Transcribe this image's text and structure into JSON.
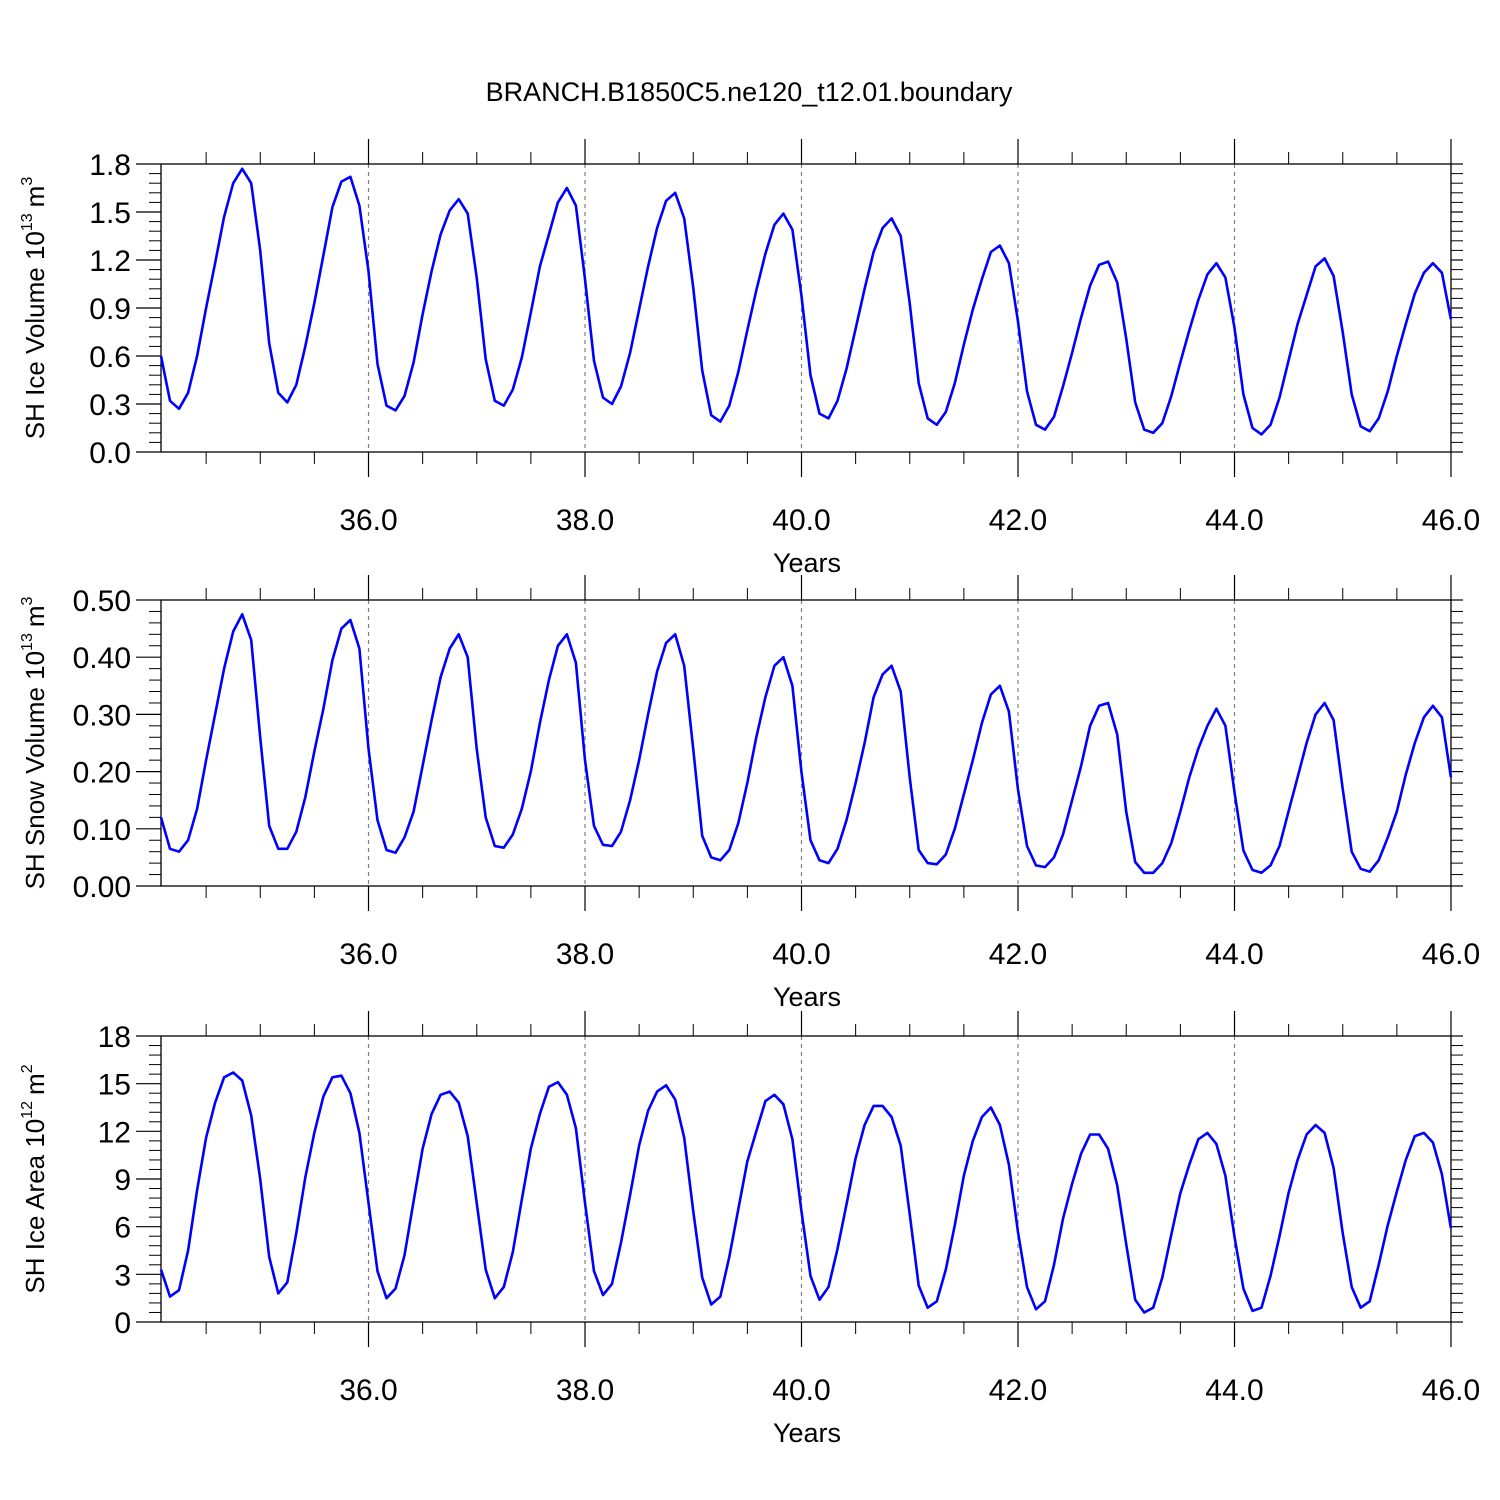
{
  "title": "BRANCH.B1850C5.ne120_t12.01.boundary",
  "chart_data": [
    {
      "type": "line",
      "ylabel": {
        "text": "SH Ice Volume 10",
        "exp": "13",
        "unit": "m",
        "unit_exp": "3"
      },
      "xlabel": "Years",
      "xlim": [
        34.083,
        46.0
      ],
      "ylim": [
        0.0,
        1.8
      ],
      "yticks": [
        0.0,
        0.3,
        0.6,
        0.9,
        1.2,
        1.5,
        1.8
      ],
      "ytick_labels": [
        "0.0",
        "0.3",
        "0.6",
        "0.9",
        "1.2",
        "1.5",
        "1.8"
      ],
      "xticks": [
        36,
        38,
        40,
        42,
        44,
        46
      ],
      "xtick_labels": [
        "36.0",
        "38.0",
        "40.0",
        "42.0",
        "44.0",
        "46.0"
      ],
      "x_start": 34.083,
      "x_step": 0.08333,
      "color": "#0000ff",
      "values": [
        0.6,
        0.32,
        0.27,
        0.37,
        0.6,
        0.9,
        1.18,
        1.47,
        1.68,
        1.77,
        1.68,
        1.26,
        0.68,
        0.37,
        0.31,
        0.42,
        0.66,
        0.93,
        1.23,
        1.53,
        1.69,
        1.72,
        1.54,
        1.13,
        0.55,
        0.29,
        0.26,
        0.35,
        0.56,
        0.86,
        1.13,
        1.36,
        1.51,
        1.58,
        1.49,
        1.09,
        0.58,
        0.32,
        0.29,
        0.39,
        0.59,
        0.87,
        1.16,
        1.36,
        1.56,
        1.65,
        1.54,
        1.08,
        0.57,
        0.34,
        0.3,
        0.41,
        0.62,
        0.89,
        1.16,
        1.4,
        1.57,
        1.62,
        1.46,
        1.03,
        0.51,
        0.23,
        0.19,
        0.29,
        0.5,
        0.76,
        1.01,
        1.24,
        1.42,
        1.49,
        1.39,
        0.98,
        0.48,
        0.24,
        0.21,
        0.32,
        0.52,
        0.77,
        1.02,
        1.25,
        1.4,
        1.46,
        1.35,
        0.93,
        0.43,
        0.21,
        0.17,
        0.25,
        0.43,
        0.67,
        0.89,
        1.08,
        1.25,
        1.29,
        1.18,
        0.82,
        0.38,
        0.17,
        0.14,
        0.22,
        0.41,
        0.62,
        0.84,
        1.04,
        1.17,
        1.19,
        1.06,
        0.71,
        0.31,
        0.14,
        0.12,
        0.18,
        0.35,
        0.56,
        0.76,
        0.95,
        1.11,
        1.18,
        1.09,
        0.78,
        0.36,
        0.15,
        0.11,
        0.17,
        0.34,
        0.57,
        0.8,
        0.98,
        1.16,
        1.21,
        1.1,
        0.75,
        0.36,
        0.16,
        0.13,
        0.21,
        0.38,
        0.6,
        0.8,
        0.99,
        1.12,
        1.18,
        1.12,
        0.83
      ]
    },
    {
      "type": "line",
      "ylabel": {
        "text": "SH Snow Volume 10",
        "exp": "13",
        "unit": "m",
        "unit_exp": "3"
      },
      "xlabel": "Years",
      "xlim": [
        34.083,
        46.0
      ],
      "ylim": [
        0.0,
        0.5
      ],
      "yticks": [
        0.0,
        0.1,
        0.2,
        0.3,
        0.4,
        0.5
      ],
      "ytick_labels": [
        "0.00",
        "0.10",
        "0.20",
        "0.30",
        "0.40",
        "0.50"
      ],
      "xticks": [
        36,
        38,
        40,
        42,
        44,
        46
      ],
      "xtick_labels": [
        "36.0",
        "38.0",
        "40.0",
        "42.0",
        "44.0",
        "46.0"
      ],
      "x_start": 34.083,
      "x_step": 0.08333,
      "color": "#0000ff",
      "values": [
        0.12,
        0.065,
        0.06,
        0.08,
        0.135,
        0.22,
        0.3,
        0.38,
        0.445,
        0.475,
        0.43,
        0.26,
        0.105,
        0.065,
        0.065,
        0.095,
        0.155,
        0.235,
        0.31,
        0.395,
        0.45,
        0.465,
        0.415,
        0.24,
        0.115,
        0.063,
        0.058,
        0.085,
        0.13,
        0.21,
        0.29,
        0.365,
        0.415,
        0.44,
        0.4,
        0.24,
        0.12,
        0.07,
        0.067,
        0.09,
        0.135,
        0.2,
        0.285,
        0.36,
        0.42,
        0.44,
        0.39,
        0.22,
        0.105,
        0.072,
        0.07,
        0.095,
        0.15,
        0.22,
        0.3,
        0.375,
        0.425,
        0.44,
        0.385,
        0.24,
        0.088,
        0.05,
        0.045,
        0.063,
        0.11,
        0.18,
        0.26,
        0.33,
        0.385,
        0.4,
        0.35,
        0.2,
        0.08,
        0.045,
        0.04,
        0.065,
        0.115,
        0.18,
        0.25,
        0.33,
        0.37,
        0.385,
        0.34,
        0.19,
        0.063,
        0.04,
        0.038,
        0.055,
        0.1,
        0.16,
        0.22,
        0.285,
        0.335,
        0.35,
        0.305,
        0.17,
        0.07,
        0.036,
        0.033,
        0.05,
        0.09,
        0.15,
        0.21,
        0.28,
        0.315,
        0.32,
        0.265,
        0.13,
        0.042,
        0.023,
        0.023,
        0.04,
        0.075,
        0.13,
        0.19,
        0.24,
        0.28,
        0.31,
        0.28,
        0.165,
        0.062,
        0.028,
        0.023,
        0.036,
        0.07,
        0.13,
        0.19,
        0.25,
        0.3,
        0.32,
        0.29,
        0.17,
        0.06,
        0.03,
        0.025,
        0.045,
        0.085,
        0.13,
        0.195,
        0.25,
        0.295,
        0.315,
        0.295,
        0.19
      ]
    },
    {
      "type": "line",
      "ylabel": {
        "text": "SH Ice Area 10",
        "exp": "12",
        "unit": "m",
        "unit_exp": "2"
      },
      "xlabel": "Years",
      "xlim": [
        34.083,
        46.0
      ],
      "ylim": [
        0,
        18
      ],
      "yticks": [
        0,
        3,
        6,
        9,
        12,
        15,
        18
      ],
      "ytick_labels": [
        "0",
        "3",
        "6",
        "9",
        "12",
        "15",
        "18"
      ],
      "xticks": [
        36,
        38,
        40,
        42,
        44,
        46
      ],
      "xtick_labels": [
        "36.0",
        "38.0",
        "40.0",
        "42.0",
        "44.0",
        "46.0"
      ],
      "x_start": 34.083,
      "x_step": 0.08333,
      "color": "#0000ff",
      "values": [
        3.3,
        1.6,
        2.0,
        4.5,
        8.3,
        11.6,
        13.8,
        15.4,
        15.7,
        15.2,
        13.0,
        9.0,
        4.1,
        1.8,
        2.5,
        5.6,
        9.1,
        11.9,
        14.2,
        15.4,
        15.5,
        14.4,
        11.9,
        7.5,
        3.2,
        1.5,
        2.1,
        4.2,
        7.6,
        10.9,
        13.1,
        14.3,
        14.5,
        13.8,
        11.7,
        7.5,
        3.3,
        1.5,
        2.2,
        4.4,
        7.7,
        10.9,
        13.1,
        14.8,
        15.1,
        14.3,
        12.2,
        7.5,
        3.2,
        1.7,
        2.4,
        5.0,
        8.0,
        11.1,
        13.3,
        14.5,
        14.9,
        14.0,
        11.6,
        7.0,
        2.8,
        1.1,
        1.6,
        4.1,
        7.1,
        10.1,
        12.0,
        13.9,
        14.3,
        13.7,
        11.5,
        7.0,
        2.9,
        1.4,
        2.2,
        4.6,
        7.4,
        10.3,
        12.4,
        13.6,
        13.6,
        12.9,
        11.1,
        6.8,
        2.3,
        0.9,
        1.3,
        3.3,
        6.1,
        9.2,
        11.4,
        12.9,
        13.5,
        12.4,
        9.9,
        5.7,
        2.2,
        0.8,
        1.3,
        3.6,
        6.5,
        8.7,
        10.6,
        11.8,
        11.8,
        10.9,
        8.6,
        4.9,
        1.4,
        0.6,
        0.9,
        2.8,
        5.5,
        8.1,
        9.9,
        11.5,
        11.9,
        11.2,
        9.2,
        5.4,
        2.1,
        0.7,
        0.9,
        2.9,
        5.4,
        8.1,
        10.2,
        11.8,
        12.4,
        11.9,
        9.7,
        5.6,
        2.2,
        0.9,
        1.3,
        3.6,
        6.1,
        8.2,
        10.2,
        11.7,
        11.9,
        11.3,
        9.3,
        5.9
      ]
    }
  ]
}
